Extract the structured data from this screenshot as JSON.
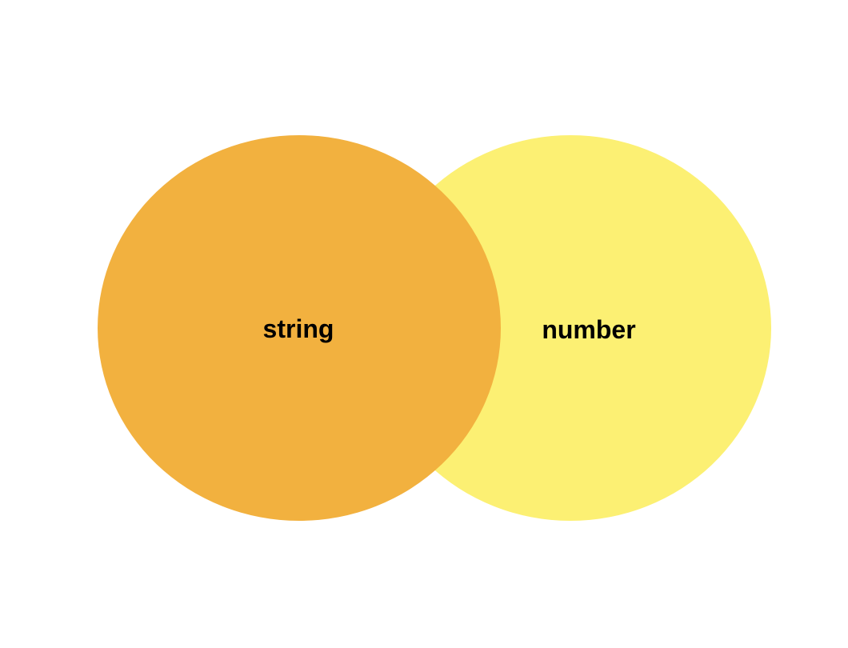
{
  "diagram": {
    "type": "venn",
    "sets": [
      {
        "label": "string",
        "color": "#F2B13F"
      },
      {
        "label": "number",
        "color": "#FCF073"
      }
    ]
  }
}
